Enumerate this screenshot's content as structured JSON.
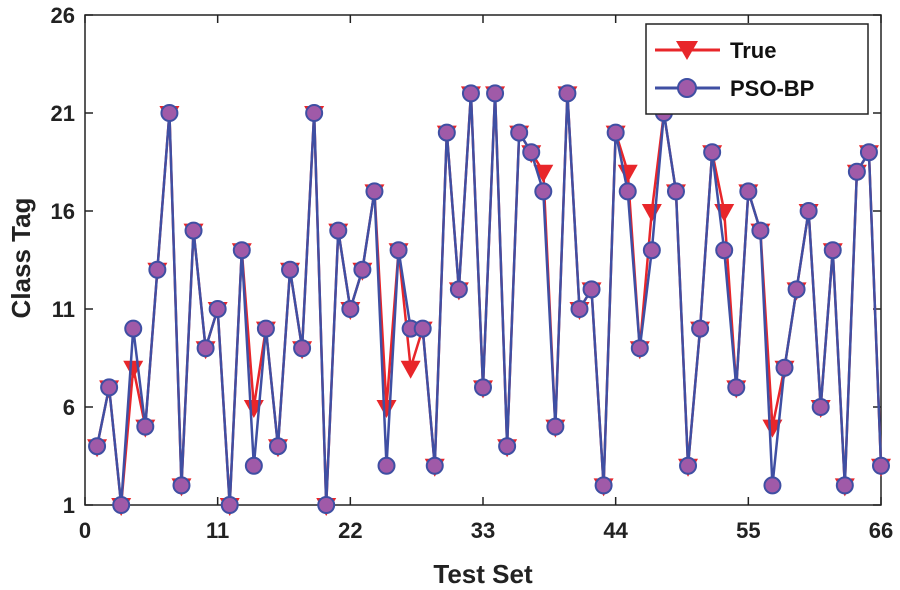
{
  "chart_data": {
    "type": "line",
    "xlabel": "Test Set",
    "ylabel": "Class Tag",
    "xlim": [
      0,
      66
    ],
    "ylim": [
      1,
      26
    ],
    "xticks": [
      0,
      11,
      22,
      33,
      44,
      55,
      66
    ],
    "yticks": [
      1,
      6,
      11,
      16,
      21,
      26
    ],
    "x": [
      1,
      2,
      3,
      4,
      5,
      6,
      7,
      8,
      9,
      10,
      11,
      12,
      13,
      14,
      15,
      16,
      17,
      18,
      19,
      20,
      21,
      22,
      23,
      24,
      25,
      26,
      27,
      28,
      29,
      30,
      31,
      32,
      33,
      34,
      35,
      36,
      37,
      38,
      39,
      40,
      41,
      42,
      43,
      44,
      45,
      46,
      47,
      48,
      49,
      50,
      51,
      52,
      53,
      54,
      55,
      56,
      57,
      58,
      59,
      60,
      61,
      62,
      63,
      64,
      65,
      66
    ],
    "series": [
      {
        "name": "True",
        "color": "#e8262a",
        "marker": "triangle-down",
        "values": [
          4,
          7,
          1,
          8,
          5,
          13,
          21,
          2,
          15,
          9,
          11,
          1,
          14,
          6,
          10,
          4,
          13,
          9,
          21,
          1,
          15,
          11,
          13,
          17,
          6,
          14,
          8,
          10,
          3,
          20,
          12,
          22,
          7,
          22,
          4,
          20,
          19,
          18,
          5,
          22,
          11,
          12,
          2,
          20,
          18,
          9,
          16,
          21,
          17,
          3,
          10,
          19,
          16,
          7,
          17,
          15,
          5,
          8,
          12,
          16,
          6,
          14,
          2,
          18,
          19,
          3
        ]
      },
      {
        "name": "PSO-BP",
        "color": "#3f4fa3",
        "marker_fill": "#a05aa8",
        "marker": "circle",
        "values": [
          4,
          7,
          1,
          10,
          5,
          13,
          21,
          2,
          15,
          9,
          11,
          1,
          14,
          3,
          10,
          4,
          13,
          9,
          21,
          1,
          15,
          11,
          13,
          17,
          3,
          14,
          10,
          10,
          3,
          20,
          12,
          22,
          7,
          22,
          4,
          20,
          19,
          17,
          5,
          22,
          11,
          12,
          2,
          20,
          17,
          9,
          14,
          21,
          17,
          3,
          10,
          19,
          14,
          7,
          17,
          15,
          2,
          8,
          12,
          16,
          6,
          14,
          2,
          18,
          19,
          3
        ]
      }
    ],
    "legend": {
      "position": "top-right",
      "entries": [
        "True",
        "PSO-BP"
      ]
    }
  }
}
